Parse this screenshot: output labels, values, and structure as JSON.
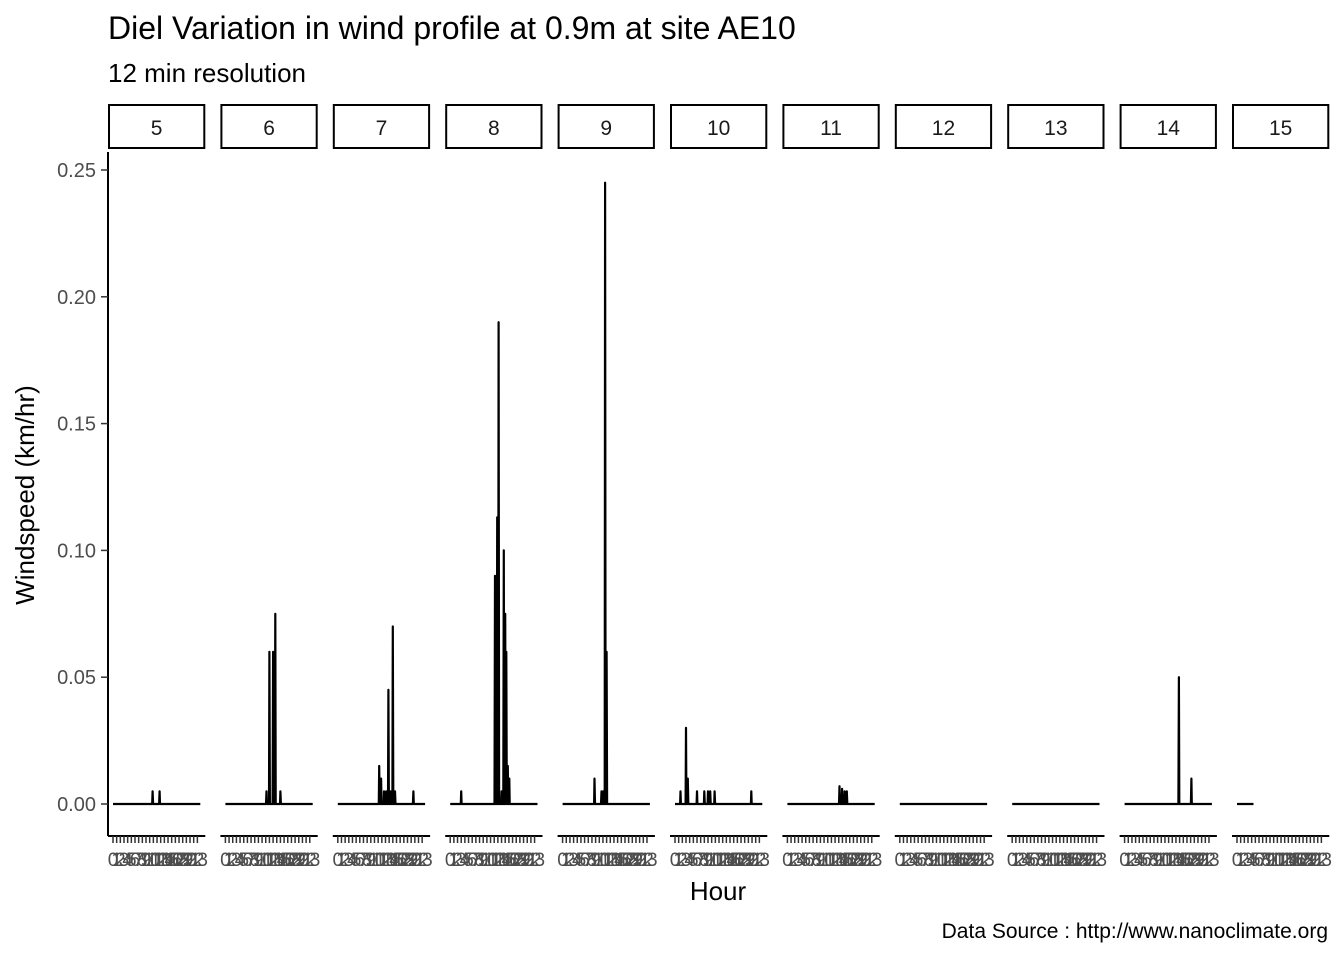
{
  "chart_data": {
    "type": "line",
    "title": "Diel Variation in wind profile at 0.9m at site AE10",
    "subtitle": "12 min resolution",
    "caption": "Data Source : http://www.nanoclimate.org",
    "xlabel": "Hour",
    "ylabel": "Windspeed (km/hr)",
    "ylim": [
      0,
      0.26
    ],
    "yticks": [
      0,
      0.05,
      0.1,
      0.15,
      0.2,
      0.25
    ],
    "ytick_labels": [
      "0.00",
      "0.05",
      "0.10",
      "0.15",
      "0.20",
      "0.25"
    ],
    "xlim": [
      0,
      23.8
    ],
    "xticks": [
      0,
      1,
      2,
      3,
      4,
      5,
      6,
      7,
      8,
      9,
      10,
      11,
      12,
      13,
      14,
      15,
      16,
      17,
      18,
      19,
      20,
      21,
      22,
      23
    ],
    "xtick_labels": [
      "0",
      "1",
      "2",
      "3",
      "4",
      "5",
      "6",
      "7",
      "8",
      "9",
      "10",
      "11",
      "12",
      "13",
      "14",
      "15",
      "16",
      "17",
      "18",
      "19",
      "20",
      "21",
      "22",
      "23"
    ],
    "grid": false,
    "legend": "none",
    "line_color": "#000000",
    "facets": [
      {
        "label": "5",
        "x_end": 23.8,
        "peaks": [
          [
            10.8,
            0.005
          ],
          [
            12.7,
            0.005
          ]
        ]
      },
      {
        "label": "6",
        "x_end": 23.8,
        "peaks": [
          [
            11.2,
            0.005
          ],
          [
            12.0,
            0.06
          ],
          [
            13.0,
            0.06
          ],
          [
            13.6,
            0.075
          ],
          [
            15.0,
            0.005
          ]
        ]
      },
      {
        "label": "7",
        "x_end": 23.8,
        "peaks": [
          [
            11.3,
            0.015
          ],
          [
            11.8,
            0.01
          ],
          [
            12.6,
            0.005
          ],
          [
            13.2,
            0.005
          ],
          [
            13.8,
            0.045
          ],
          [
            14.4,
            0.005
          ],
          [
            15.0,
            0.07
          ],
          [
            15.6,
            0.005
          ],
          [
            20.6,
            0.005
          ]
        ]
      },
      {
        "label": "8",
        "x_end": 23.8,
        "peaks": [
          [
            3.0,
            0.005
          ],
          [
            12.2,
            0.09
          ],
          [
            12.8,
            0.113
          ],
          [
            13.2,
            0.19
          ],
          [
            14.0,
            0.005
          ],
          [
            14.6,
            0.1
          ],
          [
            15.0,
            0.075
          ],
          [
            15.3,
            0.06
          ],
          [
            15.7,
            0.015
          ],
          [
            16.1,
            0.01
          ]
        ]
      },
      {
        "label": "9",
        "x_end": 23.8,
        "peaks": [
          [
            8.7,
            0.01
          ],
          [
            10.6,
            0.005
          ],
          [
            11.1,
            0.005
          ],
          [
            11.6,
            0.245
          ],
          [
            12.0,
            0.06
          ]
        ]
      },
      {
        "label": "10",
        "x_end": 23.8,
        "peaks": [
          [
            1.5,
            0.005
          ],
          [
            3.0,
            0.03
          ],
          [
            3.5,
            0.01
          ],
          [
            6.0,
            0.005
          ],
          [
            8.0,
            0.005
          ],
          [
            9.0,
            0.005
          ],
          [
            9.6,
            0.005
          ],
          [
            10.8,
            0.005
          ],
          [
            20.8,
            0.005
          ]
        ]
      },
      {
        "label": "11",
        "x_end": 23.8,
        "peaks": [
          [
            14.2,
            0.007
          ],
          [
            14.9,
            0.006
          ],
          [
            15.6,
            0.005
          ],
          [
            16.2,
            0.005
          ]
        ]
      },
      {
        "label": "12",
        "x_end": 23.8,
        "peaks": []
      },
      {
        "label": "13",
        "x_end": 23.8,
        "peaks": []
      },
      {
        "label": "14",
        "x_end": 23.8,
        "peaks": [
          [
            14.8,
            0.05
          ],
          [
            18.2,
            0.01
          ]
        ]
      },
      {
        "label": "15",
        "x_end": 4.5,
        "peaks": []
      }
    ]
  }
}
